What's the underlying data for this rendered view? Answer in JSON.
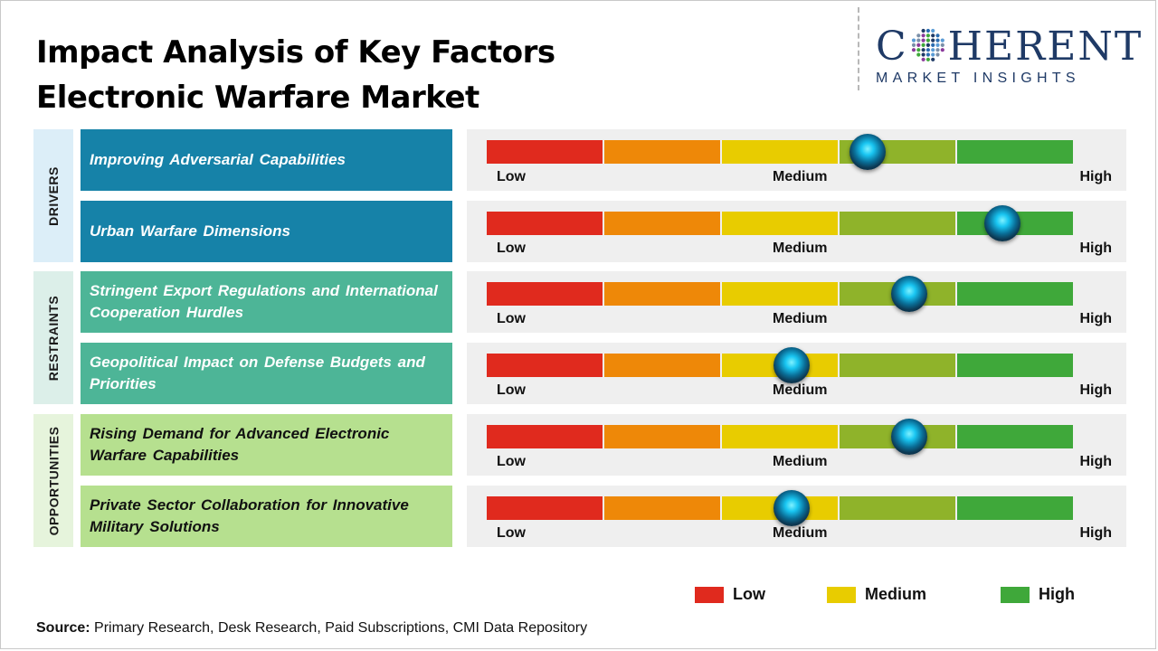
{
  "title": "Impact Analysis of Key Factors",
  "subtitle": "Electronic Warfare Market",
  "logo": {
    "top_left": "C",
    "top_right": "HERENT",
    "bottom": "MARKET INSIGHTS"
  },
  "scale_labels": {
    "low": "Low",
    "medium": "Medium",
    "high": "High"
  },
  "colors": {
    "scale": [
      "#e02a1e",
      "#ee8808",
      "#e8cc00",
      "#8fb32a",
      "#3fa83a"
    ],
    "drivers_cat": "#dceef8",
    "drivers_factor": "#1682a8",
    "restraints_cat": "#dcefe9",
    "restraints_factor": "#4db597",
    "opportunities_cat": "#e6f4dc",
    "opportunities_factor": "#b6e08f"
  },
  "categories": [
    {
      "label": "DRIVERS",
      "key": "drivers"
    },
    {
      "label": "RESTRAINTS",
      "key": "restraints"
    },
    {
      "label": "OPPORTUNITIES",
      "key": "opportunities"
    }
  ],
  "factors": [
    {
      "category": "drivers",
      "text": "Improving Adversarial Capabilities",
      "impact": 0.65
    },
    {
      "category": "drivers",
      "text": "Urban Warfare Dimensions",
      "impact": 0.88
    },
    {
      "category": "restraints",
      "text": "Stringent Export Regulations and International Cooperation Hurdles",
      "impact": 0.72
    },
    {
      "category": "restraints",
      "text": "Geopolitical Impact on Defense Budgets and Priorities",
      "impact": 0.52
    },
    {
      "category": "opportunities",
      "text": "Rising Demand for Advanced Electronic Warfare Capabilities",
      "impact": 0.72
    },
    {
      "category": "opportunities",
      "text": "Private Sector Collaboration for Innovative Military Solutions",
      "impact": 0.52
    }
  ],
  "legend": [
    {
      "label": "Low",
      "color": "#e02a1e"
    },
    {
      "label": "Medium",
      "color": "#e8cc00"
    },
    {
      "label": "High",
      "color": "#3fa83a"
    }
  ],
  "source": {
    "label": "Source:",
    "text": " Primary Research, Desk Research, Paid Subscriptions, CMI Data Repository"
  }
}
